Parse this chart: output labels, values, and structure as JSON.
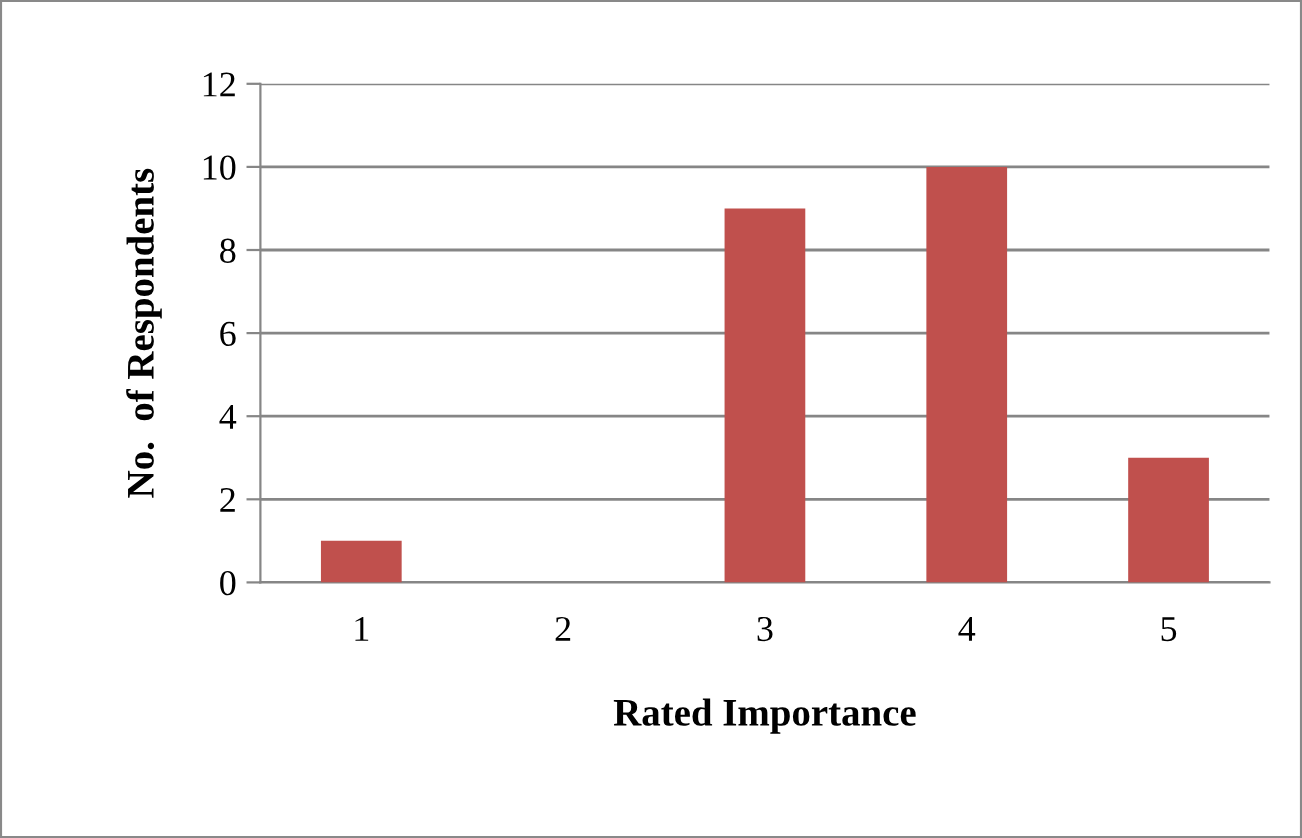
{
  "chart_data": {
    "type": "bar",
    "xlabel": "Rated Importance",
    "ylabel": "No.  of Respondents",
    "categories": [
      "1",
      "2",
      "3",
      "4",
      "5"
    ],
    "values": [
      1,
      0,
      9,
      10,
      3
    ],
    "color": "#c0504d",
    "ylim": [
      0,
      12
    ],
    "yticks": [
      0,
      2,
      4,
      6,
      8,
      10,
      12
    ],
    "grid": "y",
    "legend": false
  }
}
